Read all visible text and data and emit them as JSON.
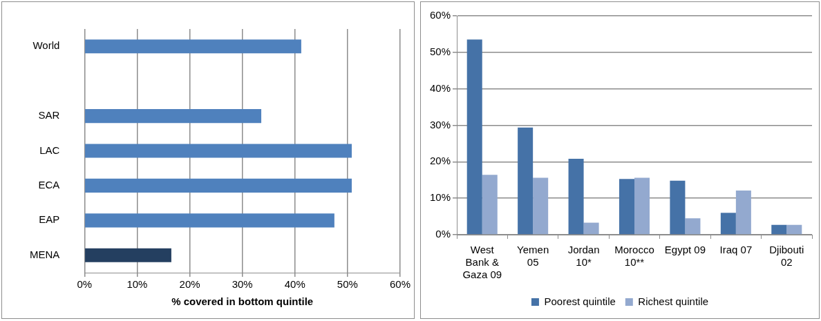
{
  "chart_data": [
    {
      "type": "bar",
      "orientation": "horizontal",
      "categories": [
        "World",
        null,
        "SAR",
        "LAC",
        "ECA",
        "EAP",
        "MENA"
      ],
      "values": [
        41.2,
        null,
        33.6,
        50.8,
        50.8,
        47.5,
        16.5
      ],
      "colors": [
        "#4f81bd",
        "#4f81bd",
        "#4f81bd",
        "#4f81bd",
        "#4f81bd",
        "#4f81bd",
        "#243f60"
      ],
      "xlabel": "% covered in bottom quintile",
      "xlim": [
        0,
        60
      ],
      "xticks": [
        {
          "value": 0,
          "label": "0%"
        },
        {
          "value": 10,
          "label": "10%"
        },
        {
          "value": 20,
          "label": "20%"
        },
        {
          "value": 30,
          "label": "30%"
        },
        {
          "value": 40,
          "label": "40%"
        },
        {
          "value": 50,
          "label": "50%"
        },
        {
          "value": 60,
          "label": "60%"
        }
      ],
      "grid": "x",
      "legend": false
    },
    {
      "type": "bar",
      "categories": [
        "West Bank & Gaza 09",
        "Yemen 05",
        "Jordan 10*",
        "Morocco 10**",
        "Egypt 09",
        "Iraq 07",
        "Djibouti 02"
      ],
      "series": [
        {
          "name": "Poorest quintile",
          "color": "#4572a7",
          "values": [
            53.5,
            29.4,
            20.8,
            15.3,
            14.8,
            6.0,
            2.7
          ]
        },
        {
          "name": "Richest quintile",
          "color": "#93a9cf",
          "values": [
            16.4,
            15.6,
            3.3,
            15.6,
            4.5,
            12.1,
            2.7
          ]
        }
      ],
      "ylim": [
        0,
        60
      ],
      "yticks": [
        {
          "value": 0,
          "label": "0%"
        },
        {
          "value": 10,
          "label": "10%"
        },
        {
          "value": 20,
          "label": "20%"
        },
        {
          "value": 30,
          "label": "30%"
        },
        {
          "value": 40,
          "label": "40%"
        },
        {
          "value": 50,
          "label": "50%"
        },
        {
          "value": 60,
          "label": "60%"
        }
      ],
      "grid": "y",
      "legend": "bottom"
    }
  ]
}
